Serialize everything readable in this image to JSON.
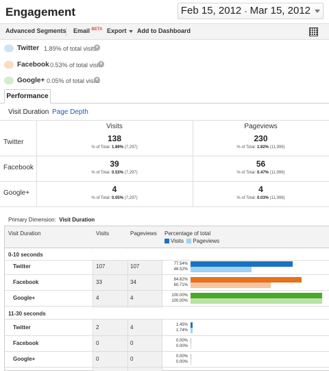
{
  "header": {
    "title": "Engagement",
    "date_start": "Feb 15, 2012",
    "date_sep": "-",
    "date_end": "Mar 15, 2012"
  },
  "toolbar": {
    "advanced_segments": "Advanced Segments",
    "email": "Email",
    "beta": "BETA",
    "export": "Export",
    "add_dashboard": "Add to Dashboard"
  },
  "segments": [
    {
      "name": "Twitter",
      "pct": "1.89% of total visits",
      "color": "#cfe3f4"
    },
    {
      "name": "Facebook",
      "pct": "0.53% of total visits",
      "color": "#fbdcc1"
    },
    {
      "name": "Google+",
      "pct": "0.05% of total visits",
      "color": "#d5ecc9"
    }
  ],
  "tabs": {
    "performance": "Performance"
  },
  "sublinks": {
    "visit_duration": "Visit Duration",
    "page_depth": "Page Depth"
  },
  "summary": {
    "col_visits": "Visits",
    "col_pageviews": "Pageviews",
    "rows": [
      {
        "label": "Twitter",
        "visits": "138",
        "visits_pct": "% of Total:",
        "visits_val": "1.89%",
        "visits_tot": "(7,297)",
        "pv": "230",
        "pv_pct": "% of Total:",
        "pv_val": "1.92%",
        "pv_tot": "(11,999)"
      },
      {
        "label": "Facebook",
        "visits": "39",
        "visits_pct": "% of Total:",
        "visits_val": "0.53%",
        "visits_tot": "(7,297)",
        "pv": "56",
        "pv_pct": "% of Total:",
        "pv_val": "0.47%",
        "pv_tot": "(11,999)"
      },
      {
        "label": "Google+",
        "visits": "4",
        "visits_pct": "% of Total:",
        "visits_val": "0.05%",
        "visits_tot": "(7,297)",
        "pv": "4",
        "pv_pct": "% of Total:",
        "pv_val": "0.03%",
        "pv_tot": "(11,999)"
      }
    ]
  },
  "primary_dimension": {
    "label": "Primary Dimension:",
    "value": "Visit Duration"
  },
  "table": {
    "col_dim": "Visit Duration",
    "col_visits": "Visits",
    "col_pageviews": "Pageviews",
    "col_pct": "Percentage of total",
    "legend_visits": "Visits",
    "legend_pageviews": "Pageviews",
    "groups": [
      {
        "label": "0-10 seconds",
        "rows": [
          {
            "name": "Twitter",
            "visits": "107",
            "pageviews": "107",
            "pct_visits": "77.54%",
            "pct_pv": "46.52%",
            "frac_visits": 0.7754,
            "frac_pv": 0.4652,
            "c1": "#1a73c1",
            "c2": "#9fd3f1"
          },
          {
            "name": "Facebook",
            "visits": "33",
            "pageviews": "34",
            "pct_visits": "84.62%",
            "pct_pv": "60.71%",
            "frac_visits": 0.8462,
            "frac_pv": 0.6071,
            "c1": "#e8711c",
            "c2": "#f6c4a0"
          },
          {
            "name": "Google+",
            "visits": "4",
            "pageviews": "4",
            "pct_visits": "100.00%",
            "pct_pv": "100.00%",
            "frac_visits": 1.0,
            "frac_pv": 1.0,
            "c1": "#49a928",
            "c2": "#b9e2a5"
          }
        ]
      },
      {
        "label": "11-30 seconds",
        "rows": [
          {
            "name": "Twitter",
            "visits": "2",
            "pageviews": "4",
            "pct_visits": "1.45%",
            "pct_pv": "1.74%",
            "frac_visits": 0.0145,
            "frac_pv": 0.0174,
            "c1": "#1a73c1",
            "c2": "#9fd3f1"
          },
          {
            "name": "Facebook",
            "visits": "0",
            "pageviews": "0",
            "pct_visits": "0.00%",
            "pct_pv": "0.00%",
            "frac_visits": 0.0,
            "frac_pv": 0.0,
            "c1": "#e8711c",
            "c2": "#f6c4a0"
          },
          {
            "name": "Google+",
            "visits": "0",
            "pageviews": "0",
            "pct_visits": "0.00%",
            "pct_pv": "0.00%",
            "frac_visits": 0.0,
            "frac_pv": 0.0,
            "c1": "#49a928",
            "c2": "#b9e2a5"
          }
        ]
      }
    ]
  },
  "colors": {
    "visits": "#1a73c1",
    "pageviews": "#9fd3f1",
    "link": "#1a5bb5"
  }
}
